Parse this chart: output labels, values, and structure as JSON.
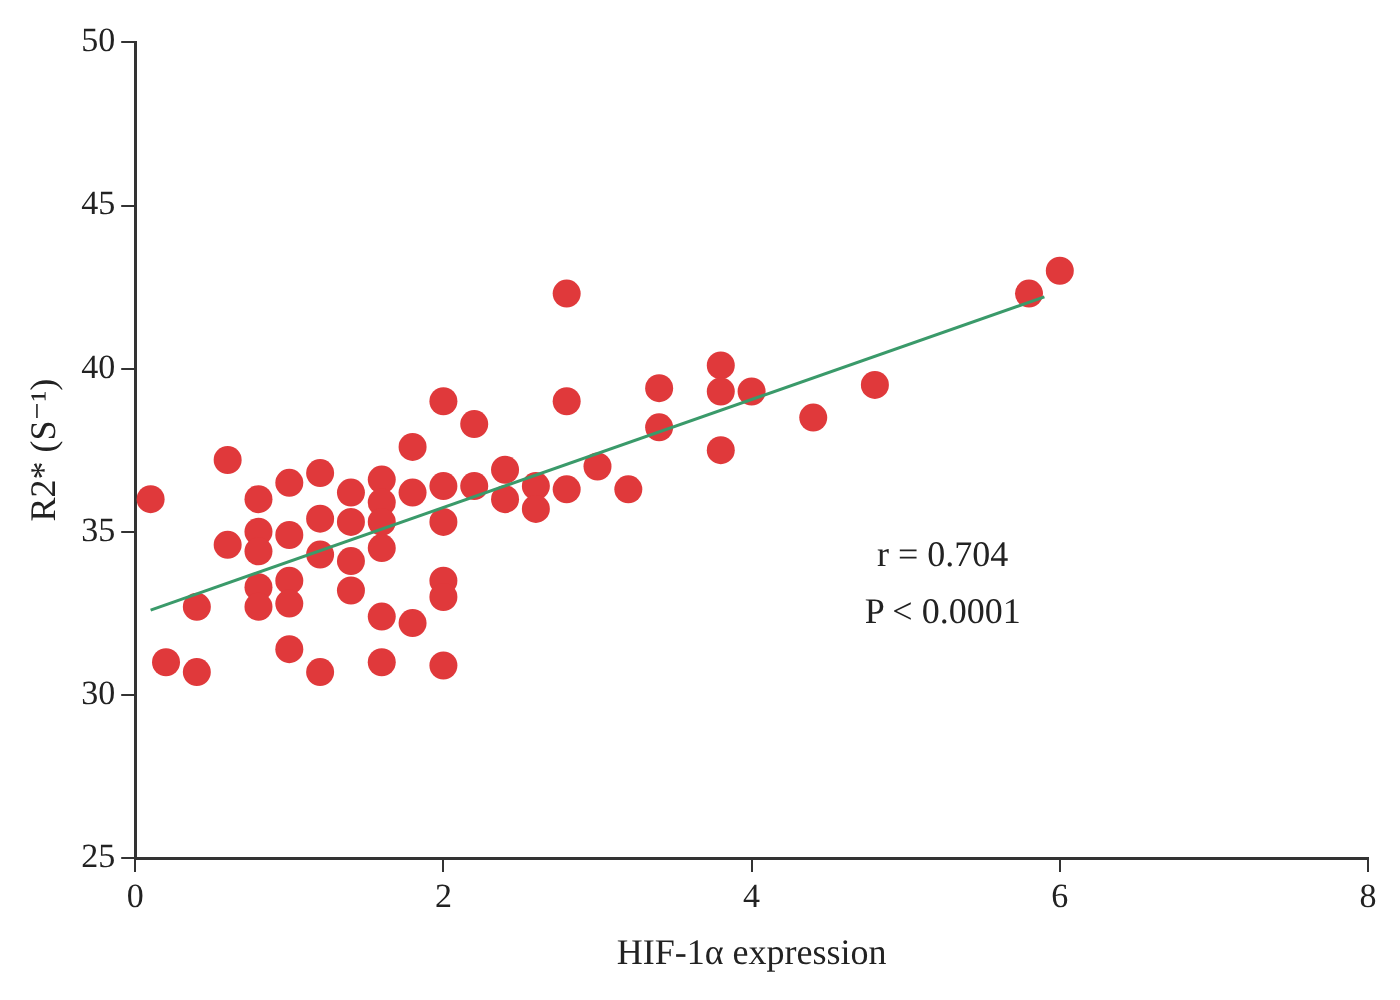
{
  "chart_data": {
    "type": "scatter",
    "xlabel": "HIF-1α expression",
    "ylabel": "R2* (S⁻¹)",
    "xlim": [
      0,
      8
    ],
    "xticks": [
      0,
      2,
      4,
      6,
      8
    ],
    "ylim": [
      25,
      50
    ],
    "yticks": [
      25,
      30,
      35,
      40,
      45,
      50
    ],
    "grid": false,
    "legend": false,
    "marker": "circle",
    "annotations": [
      "r = 0.704",
      "P < 0.0001"
    ],
    "series": [
      {
        "color": "#e0393b",
        "x": [
          0.1,
          0.2,
          0.4,
          0.4,
          0.6,
          0.6,
          0.8,
          0.8,
          0.8,
          0.8,
          0.8,
          1.0,
          1.0,
          1.0,
          1.0,
          1.0,
          1.2,
          1.2,
          1.2,
          1.2,
          1.4,
          1.4,
          1.4,
          1.4,
          1.6,
          1.6,
          1.6,
          1.6,
          1.6,
          1.6,
          1.8,
          1.8,
          1.8,
          2.0,
          2.0,
          2.0,
          2.0,
          2.0,
          2.0,
          2.2,
          2.2,
          2.4,
          2.4,
          2.6,
          2.6,
          2.8,
          2.8,
          2.8,
          3.0,
          3.2,
          3.4,
          3.4,
          3.8,
          3.8,
          3.8,
          4.0,
          4.4,
          4.8,
          5.8,
          6.0
        ],
        "values": [
          36.0,
          31.0,
          32.7,
          30.7,
          37.2,
          34.6,
          36.0,
          35.0,
          34.4,
          33.3,
          32.7,
          36.5,
          34.9,
          33.5,
          32.8,
          31.4,
          36.8,
          35.4,
          34.3,
          30.7,
          36.2,
          35.3,
          34.1,
          33.2,
          36.6,
          35.9,
          35.3,
          34.5,
          32.4,
          31.0,
          37.6,
          36.2,
          32.2,
          39.0,
          36.4,
          35.3,
          33.5,
          33.0,
          30.9,
          38.3,
          36.4,
          36.9,
          36.0,
          36.4,
          35.7,
          42.3,
          39.0,
          36.3,
          37.0,
          36.3,
          39.4,
          38.2,
          40.1,
          39.3,
          37.5,
          39.3,
          38.5,
          39.5,
          42.3,
          43.0
        ]
      },
      {
        "type": "line",
        "color": "#3a9a6a",
        "marker": "none",
        "x": [
          0.1,
          5.9
        ],
        "values": [
          32.6,
          42.2
        ]
      }
    ]
  }
}
